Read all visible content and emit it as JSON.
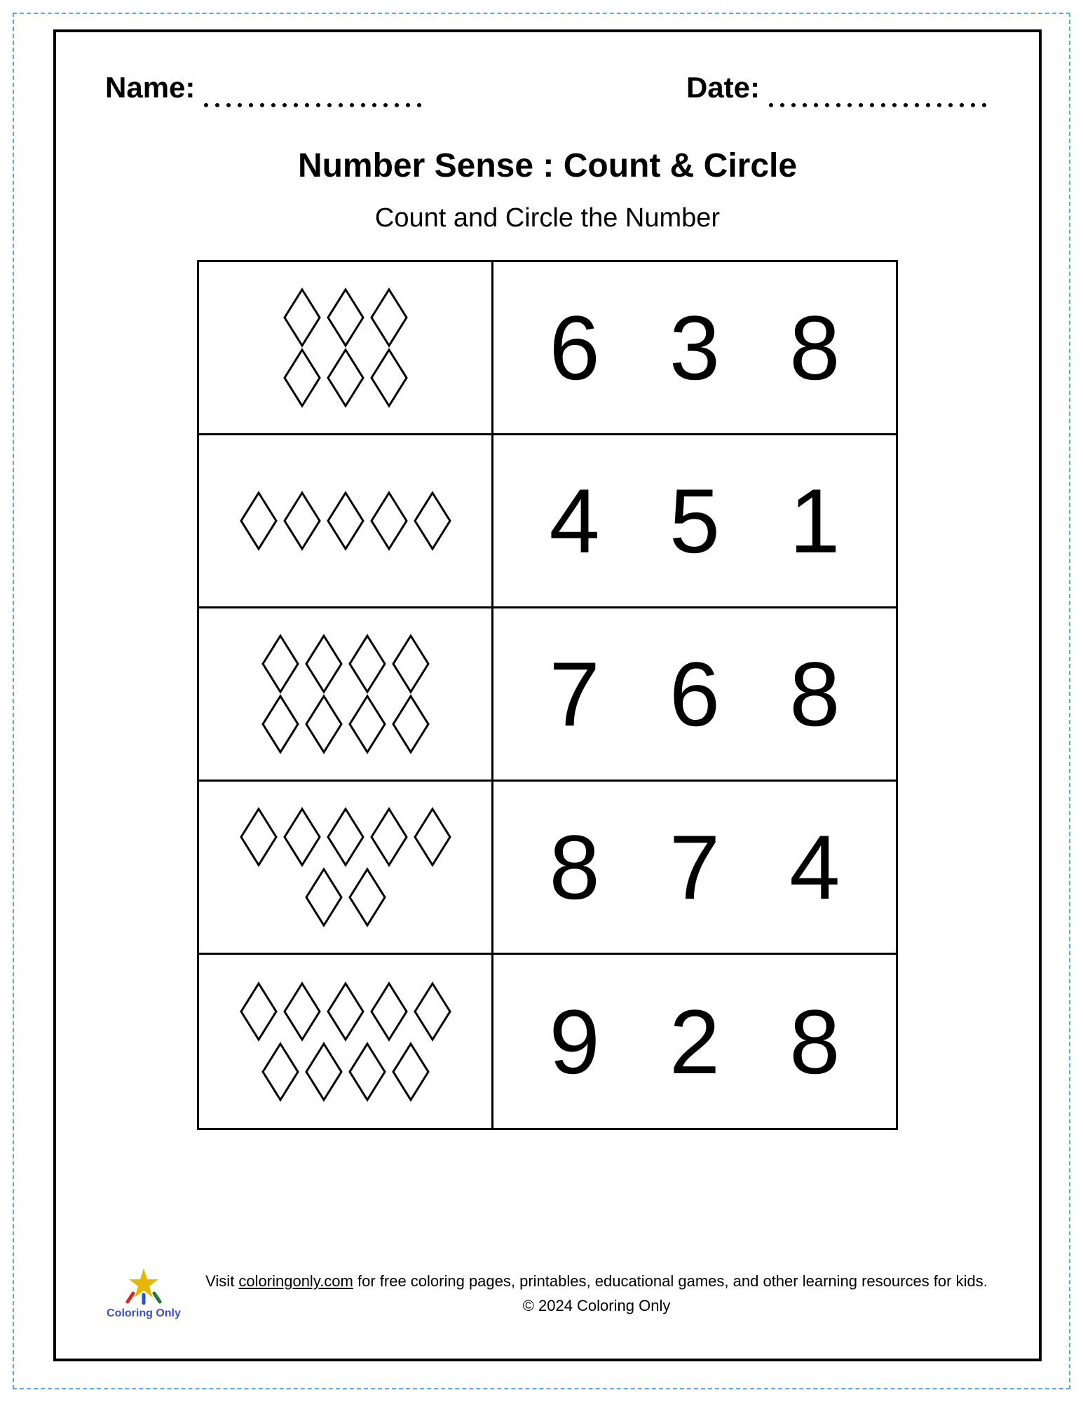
{
  "header": {
    "name_label": "Name:",
    "date_label": "Date:"
  },
  "title": "Number Sense : Count & Circle",
  "subtitle": "Count and Circle the Number",
  "diamond": {
    "width": 56,
    "height": 86,
    "stroke": "#000000",
    "stroke_width": 3,
    "fill": "#ffffff"
  },
  "rows": [
    {
      "shape_lines": [
        3,
        3
      ],
      "numbers": [
        "6",
        "3",
        "8"
      ]
    },
    {
      "shape_lines": [
        5
      ],
      "numbers": [
        "4",
        "5",
        "1"
      ]
    },
    {
      "shape_lines": [
        4,
        4
      ],
      "numbers": [
        "7",
        "6",
        "8"
      ]
    },
    {
      "shape_lines": [
        5,
        2
      ],
      "numbers": [
        "8",
        "7",
        "4"
      ]
    },
    {
      "shape_lines": [
        5,
        4
      ],
      "numbers": [
        "9",
        "2",
        "8"
      ]
    }
  ],
  "footer": {
    "logo_label": "Coloring Only",
    "line1_pre": "Visit ",
    "link_text": "coloringonly.com",
    "line1_post": " for free coloring pages, printables, educational games, and other learning resources for kids.",
    "line2": "© 2024 Coloring Only"
  },
  "colors": {
    "page_border": "#000000",
    "dashed_border": "#5fa5e6",
    "background": "#ffffff",
    "text": "#000000",
    "logo_text": "#3b4fc9"
  }
}
